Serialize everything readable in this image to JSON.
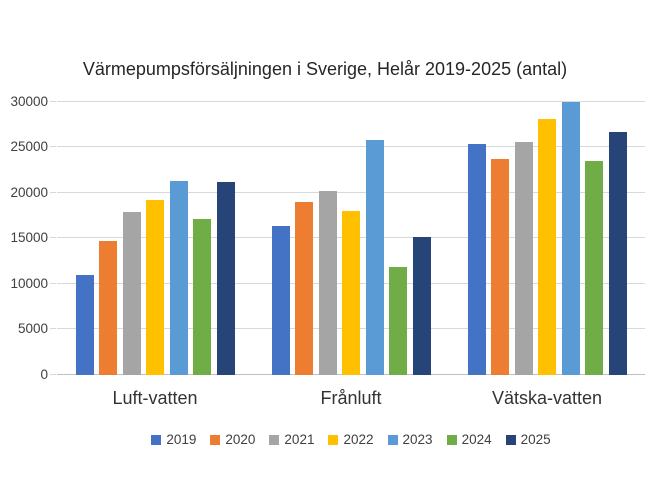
{
  "chart_data": {
    "type": "bar",
    "title": "Värmepumpsförsäljningen i Sverige, Helår 2019-2025 (antal)",
    "categories": [
      "Luft-vatten",
      "Frånluft",
      "Vätska-vatten"
    ],
    "series": [
      {
        "name": "2019",
        "color": "#4472C4",
        "values": [
          11000,
          16350,
          25400
        ]
      },
      {
        "name": "2020",
        "color": "#ED7D31",
        "values": [
          14750,
          19000,
          23750
        ]
      },
      {
        "name": "2021",
        "color": "#A5A5A5",
        "values": [
          17900,
          20200,
          25550
        ]
      },
      {
        "name": "2022",
        "color": "#FFC000",
        "values": [
          19250,
          18050,
          28150
        ]
      },
      {
        "name": "2023",
        "color": "#5B9BD5",
        "values": [
          21350,
          25850,
          30000
        ]
      },
      {
        "name": "2024",
        "color": "#70AD47",
        "values": [
          17150,
          11850,
          23500
        ]
      },
      {
        "name": "2025",
        "color": "#264478",
        "values": [
          21250,
          15200,
          26750
        ]
      }
    ],
    "xlabel": "",
    "ylabel": "",
    "ylim": [
      0,
      30000
    ],
    "yticks": [
      0,
      5000,
      10000,
      15000,
      20000,
      25000,
      30000
    ],
    "grid": "horizontal",
    "legend_position": "bottom"
  },
  "style_colors": {
    "gridline": "#D9D9D9",
    "baseline": "#BFBFBF",
    "axis_text": "#404040",
    "title_text": "#262626",
    "background": "#FFFFFF"
  }
}
